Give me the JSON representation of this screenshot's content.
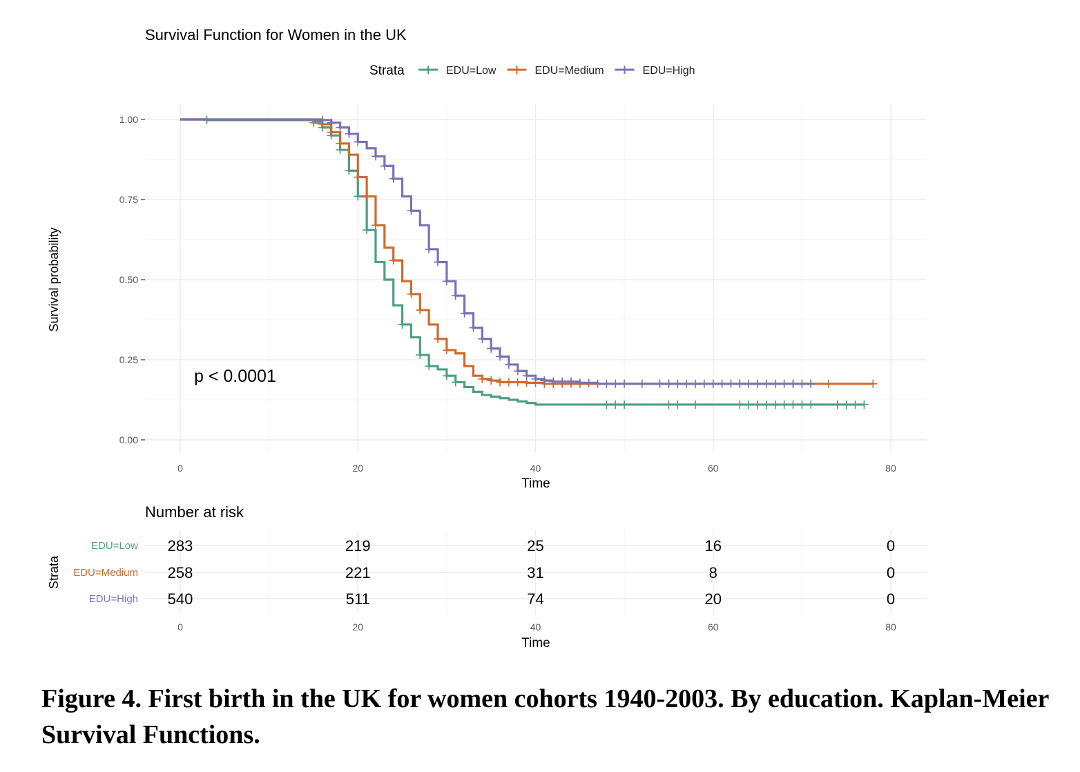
{
  "chart_data": {
    "type": "line",
    "title": "Survival Function for Women in the UK",
    "xlabel": "Time",
    "ylabel": "Survival probability",
    "xlim": [
      0,
      80
    ],
    "ylim": [
      0,
      1
    ],
    "x_ticks": [
      "0",
      "20",
      "40",
      "60",
      "80"
    ],
    "y_ticks": [
      "0.00",
      "0.25",
      "0.50",
      "0.75",
      "1.00"
    ],
    "grid": true,
    "legend": {
      "title": "Strata",
      "position": "top"
    },
    "annotation": "p < 0.0001",
    "series": [
      {
        "name": "EDU=Low",
        "color": "#4f9e7f",
        "steps": [
          [
            0,
            1
          ],
          [
            3,
            0.998
          ],
          [
            15,
            0.99
          ],
          [
            16,
            0.975
          ],
          [
            17,
            0.95
          ],
          [
            18,
            0.905
          ],
          [
            19,
            0.84
          ],
          [
            20,
            0.76
          ],
          [
            21,
            0.655
          ],
          [
            22,
            0.555
          ],
          [
            23,
            0.5
          ],
          [
            24,
            0.42
          ],
          [
            25,
            0.36
          ],
          [
            26,
            0.32
          ],
          [
            27,
            0.265
          ],
          [
            28,
            0.23
          ],
          [
            29,
            0.22
          ],
          [
            30,
            0.2
          ],
          [
            31,
            0.18
          ],
          [
            32,
            0.165
          ],
          [
            33,
            0.15
          ],
          [
            34,
            0.14
          ],
          [
            35,
            0.135
          ],
          [
            36,
            0.13
          ],
          [
            37,
            0.125
          ],
          [
            38,
            0.12
          ],
          [
            39,
            0.115
          ],
          [
            40,
            0.11
          ],
          [
            77,
            0.11
          ]
        ],
        "censor_x": [
          3,
          15,
          16,
          17,
          18,
          19,
          20,
          21,
          25,
          27,
          28,
          30,
          31,
          48,
          49,
          50,
          55,
          56,
          58,
          63,
          64,
          65,
          66,
          67,
          68,
          69,
          70,
          71,
          74,
          75,
          76,
          77
        ]
      },
      {
        "name": "EDU=Medium",
        "color": "#cf6a2f",
        "steps": [
          [
            0,
            1
          ],
          [
            15,
            0.995
          ],
          [
            16,
            0.985
          ],
          [
            17,
            0.96
          ],
          [
            18,
            0.925
          ],
          [
            19,
            0.89
          ],
          [
            20,
            0.82
          ],
          [
            21,
            0.76
          ],
          [
            22,
            0.67
          ],
          [
            23,
            0.6
          ],
          [
            24,
            0.56
          ],
          [
            25,
            0.495
          ],
          [
            26,
            0.455
          ],
          [
            27,
            0.405
          ],
          [
            28,
            0.36
          ],
          [
            29,
            0.315
          ],
          [
            30,
            0.28
          ],
          [
            31,
            0.27
          ],
          [
            32,
            0.23
          ],
          [
            33,
            0.2
          ],
          [
            34,
            0.19
          ],
          [
            35,
            0.185
          ],
          [
            36,
            0.18
          ],
          [
            39,
            0.178
          ],
          [
            41,
            0.175
          ],
          [
            78,
            0.175
          ]
        ],
        "censor_x": [
          16,
          17,
          18,
          20,
          21,
          22,
          24,
          26,
          27,
          29,
          30,
          34,
          35,
          36,
          37,
          38,
          39,
          40,
          41,
          42,
          43,
          44,
          45,
          55,
          56,
          60,
          63,
          69,
          71,
          73,
          78
        ]
      },
      {
        "name": "EDU=High",
        "color": "#7a72b3",
        "steps": [
          [
            0,
            1
          ],
          [
            16,
            0.998
          ],
          [
            17,
            0.99
          ],
          [
            18,
            0.975
          ],
          [
            19,
            0.955
          ],
          [
            20,
            0.93
          ],
          [
            21,
            0.91
          ],
          [
            22,
            0.885
          ],
          [
            23,
            0.855
          ],
          [
            24,
            0.815
          ],
          [
            25,
            0.76
          ],
          [
            26,
            0.715
          ],
          [
            27,
            0.67
          ],
          [
            28,
            0.595
          ],
          [
            29,
            0.555
          ],
          [
            30,
            0.495
          ],
          [
            31,
            0.45
          ],
          [
            32,
            0.395
          ],
          [
            33,
            0.35
          ],
          [
            34,
            0.315
          ],
          [
            35,
            0.285
          ],
          [
            36,
            0.26
          ],
          [
            37,
            0.235
          ],
          [
            38,
            0.215
          ],
          [
            39,
            0.2
          ],
          [
            40,
            0.19
          ],
          [
            41,
            0.185
          ],
          [
            42,
            0.182
          ],
          [
            45,
            0.178
          ],
          [
            47,
            0.175
          ],
          [
            71,
            0.175
          ]
        ],
        "censor_x": [
          16,
          17,
          18,
          19,
          20,
          22,
          23,
          24,
          26,
          28,
          29,
          30,
          31,
          32,
          33,
          34,
          35,
          36,
          37,
          38,
          39,
          40,
          41,
          42,
          43,
          44,
          45,
          46,
          47,
          48,
          49,
          50,
          52,
          54,
          55,
          56,
          57,
          58,
          59,
          60,
          61,
          62,
          63,
          64,
          65,
          66,
          67,
          68,
          69,
          70,
          71
        ]
      }
    ]
  },
  "risk_table": {
    "title": "Number at risk",
    "ylabel": "Strata",
    "xlabel": "Time",
    "x_ticks": [
      "0",
      "20",
      "40",
      "60",
      "80"
    ],
    "rows": [
      {
        "label": "EDU=Low",
        "color": "#4f9e7f",
        "values": [
          "283",
          "219",
          "25",
          "16",
          "0"
        ]
      },
      {
        "label": "EDU=Medium",
        "color": "#cf6a2f",
        "values": [
          "258",
          "221",
          "31",
          "8",
          "0"
        ]
      },
      {
        "label": "EDU=High",
        "color": "#7a72b3",
        "values": [
          "540",
          "511",
          "74",
          "20",
          "0"
        ]
      }
    ]
  },
  "caption": "Figure 4. First birth in the UK for women cohorts 1940-2003. By education. Kaplan-Meier Survival Functions."
}
